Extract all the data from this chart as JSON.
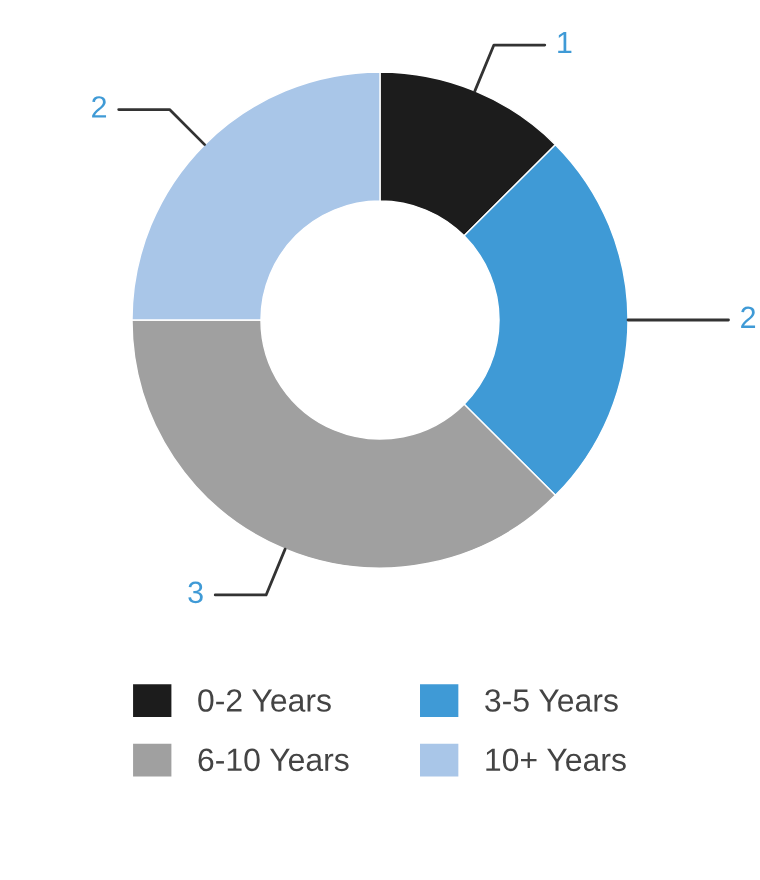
{
  "chart_data": {
    "type": "donut",
    "categories": [
      "0-2 Years",
      "3-5 Years",
      "6-10 Years",
      "10+ Years"
    ],
    "values": [
      1,
      2,
      3,
      2
    ],
    "colors": [
      "#1c1c1c",
      "#3f9ad6",
      "#a0a0a0",
      "#a9c6e8"
    ],
    "data_labels": true,
    "legend": "bottom"
  }
}
